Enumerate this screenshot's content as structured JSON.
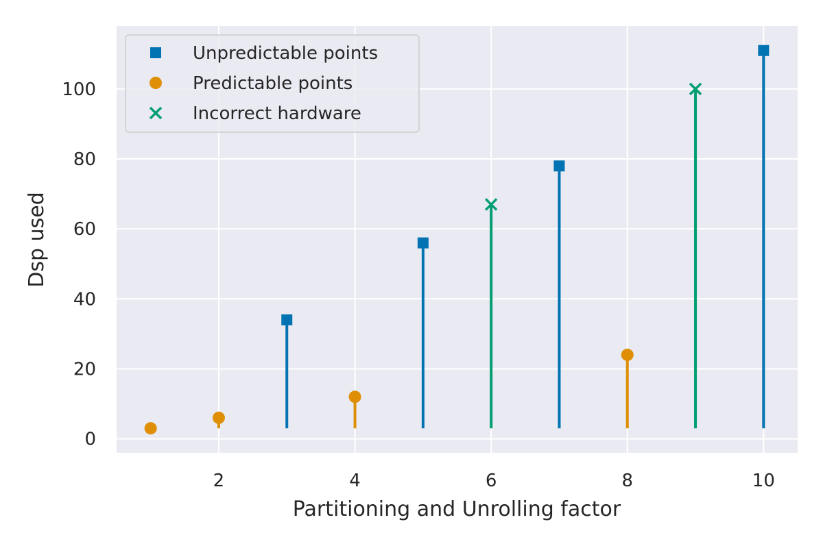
{
  "chart_data": {
    "type": "scatter",
    "title": "",
    "xlabel": "Partitioning and Unrolling factor",
    "ylabel": "Dsp used",
    "xlim": [
      0.5,
      10.5
    ],
    "ylim": [
      -4,
      118
    ],
    "xticks": [
      2,
      4,
      6,
      8,
      10
    ],
    "yticks": [
      0,
      20,
      40,
      60,
      80,
      100
    ],
    "grid": true,
    "legend_position": "top-left",
    "baseline": 3,
    "series": [
      {
        "name": "Unpredictable points",
        "marker": "square",
        "color": "#0173b2",
        "x": [
          3,
          5,
          7,
          10
        ],
        "y": [
          34,
          56,
          78,
          111
        ]
      },
      {
        "name": "Predictable points",
        "marker": "circle",
        "color": "#de8f05",
        "x": [
          1,
          2,
          4,
          8
        ],
        "y": [
          3,
          6,
          12,
          24
        ]
      },
      {
        "name": "Incorrect hardware",
        "marker": "x",
        "color": "#029e73",
        "x": [
          6,
          9
        ],
        "y": [
          67,
          100
        ]
      }
    ]
  }
}
